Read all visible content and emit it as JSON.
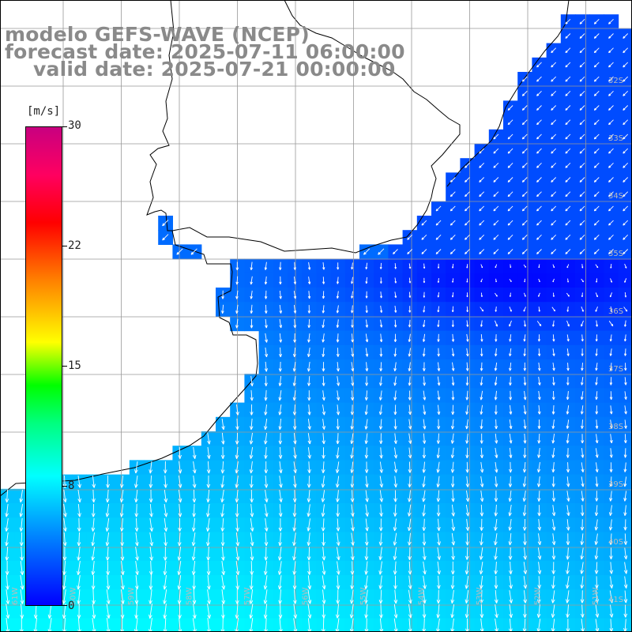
{
  "titles": {
    "line1": "modelo GEFS-WAVE (NCEP)",
    "line2": "forecast date: 2025-07-11 06:00:00",
    "line3": "valid date: 2025-07-21 00:00:00"
  },
  "colorbar": {
    "unit": "[m/s]",
    "ticks": [
      "30",
      "22",
      "15",
      "8",
      "0"
    ],
    "min": 0,
    "max": 30,
    "colors": [
      "#0000ff",
      "#0080ff",
      "#00ffff",
      "#00ff80",
      "#00ff00",
      "#ffff00",
      "#ff8000",
      "#ff0000",
      "#c80080"
    ]
  },
  "lat_labels": [
    "32S",
    "33S",
    "34S",
    "35S",
    "36S",
    "37S",
    "38S",
    "39S",
    "40S",
    "41S"
  ],
  "lon_labels": [
    "61W",
    "60W",
    "59W",
    "58W",
    "57W",
    "56W",
    "55W",
    "54W",
    "53W",
    "52W",
    "51W"
  ],
  "field": {
    "variable": "wind speed and direction",
    "land_color": "#ffffff",
    "grid_color": "#999999"
  }
}
